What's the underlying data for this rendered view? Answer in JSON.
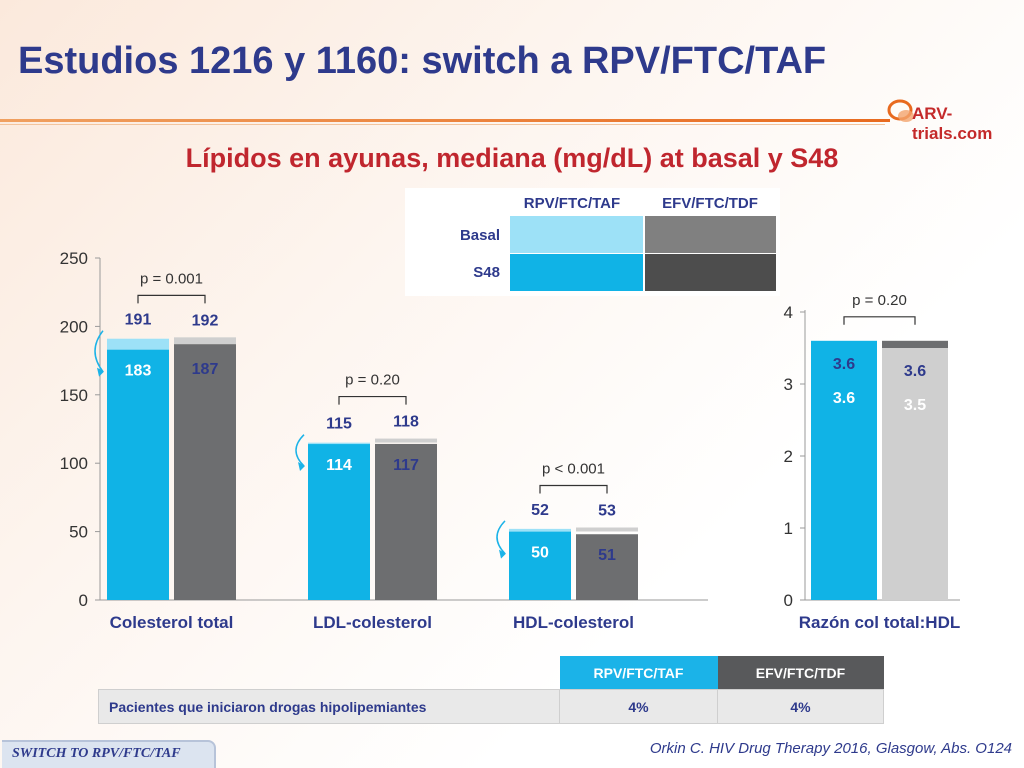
{
  "title": "Estudios 1216 y 1160: switch a RPV/FTC/TAF",
  "logo_text": "ARV-trials.com",
  "subtitle": "Lípidos en ayunas, mediana (mg/dL) at basal y S48",
  "legend": {
    "col1": "RPV/FTC/TAF",
    "col2": "EFV/FTC/TDF",
    "row1": "Basal",
    "row2": "S48"
  },
  "colors": {
    "rpv_basal": "#9de1f7",
    "rpv_s48": "#10b3e6",
    "efv_basal": "#cfcfcf",
    "efv_s48": "#6d6e70",
    "efv_legend_basal": "#808080",
    "efv_legend_s48": "#4d4d4d",
    "label_dark": "#2e3a8c",
    "label_white": "#ffffff"
  },
  "chart_data": [
    {
      "type": "bar",
      "ylim": [
        0,
        250
      ],
      "yticks": [
        "0",
        "50",
        "100",
        "150",
        "200",
        "250"
      ],
      "categories": [
        "Colesterol total",
        "LDL-colesterol",
        "HDL-colesterol"
      ],
      "series": [
        {
          "name": "RPV/FTC/TAF Basal",
          "values": [
            183,
            114,
            50
          ]
        },
        {
          "name": "RPV/FTC/TAF S48",
          "values": [
            191,
            115,
            52
          ]
        },
        {
          "name": "EFV/FTC/TDF Basal",
          "values": [
            187,
            117,
            51
          ]
        },
        {
          "name": "EFV/FTC/TDF S48",
          "values": [
            192,
            118,
            53
          ]
        }
      ],
      "labels": {
        "rpv_basal": [
          "183",
          "114",
          "50"
        ],
        "rpv_s48": [
          "191",
          "115",
          "52"
        ],
        "efv_basal": [
          "187",
          "117",
          "51"
        ],
        "efv_s48": [
          "192",
          "118",
          "53"
        ]
      },
      "pvalues": [
        "p = 0.001",
        "p = 0.20",
        "p < 0.001"
      ]
    },
    {
      "type": "bar",
      "ylim": [
        0,
        4
      ],
      "yticks": [
        "0",
        "1",
        "2",
        "3",
        "4"
      ],
      "categories": [
        "Razón col total:HDL"
      ],
      "series": [
        {
          "name": "RPV/FTC/TAF Basal",
          "values": [
            3.6
          ]
        },
        {
          "name": "RPV/FTC/TAF S48",
          "values": [
            3.6
          ]
        },
        {
          "name": "EFV/FTC/TDF Basal",
          "values": [
            3.5
          ]
        },
        {
          "name": "EFV/FTC/TDF S48",
          "values": [
            3.6
          ]
        }
      ],
      "labels": {
        "rpv_basal": [
          "3.6"
        ],
        "rpv_s48": [
          "3.6"
        ],
        "efv_basal": [
          "3.5"
        ],
        "efv_s48": [
          "3.6"
        ]
      },
      "pvalues": [
        "p = 0.20"
      ]
    }
  ],
  "bottom_table": {
    "col1": "RPV/FTC/TAF",
    "col2": "EFV/FTC/TDF",
    "row_label": "Pacientes que iniciaron drogas hipolipemiantes",
    "row_val1": "4%",
    "row_val2": "4%"
  },
  "footer_tag": "SWITCH TO RPV/FTC/TAF",
  "citation": "Orkin C. HIV Drug Therapy 2016, Glasgow, Abs. O124"
}
